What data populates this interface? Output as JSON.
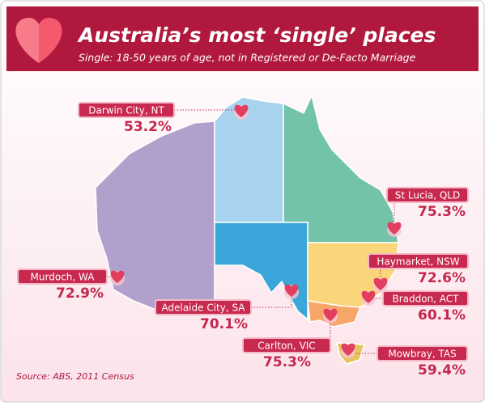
{
  "header": {
    "title": "Australia’s most ‘single’ places",
    "subtitle": "Single: 18-50 years of age, not in Registered or De-Facto Marriage"
  },
  "places": [
    {
      "name": "Darwin City, NT",
      "value": "53.2%"
    },
    {
      "name": "St Lucia, QLD",
      "value": "75.3%"
    },
    {
      "name": "Murdoch, WA",
      "value": "72.9%"
    },
    {
      "name": "Haymarket, NSW",
      "value": "72.6%"
    },
    {
      "name": "Adelaide City, SA",
      "value": "70.1%"
    },
    {
      "name": "Braddon, ACT",
      "value": "60.1%"
    },
    {
      "name": "Carlton, VIC",
      "value": "75.3%"
    },
    {
      "name": "Mowbray, TAS",
      "value": "59.4%"
    }
  ],
  "source": "Source: ABS, 2011 Census"
}
